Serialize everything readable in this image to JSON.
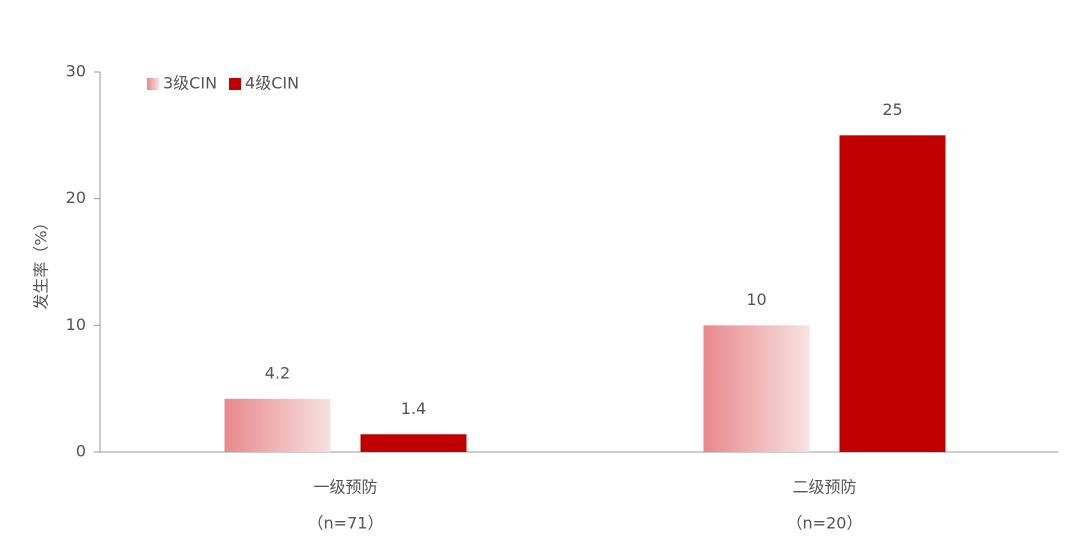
{
  "chart_data": {
    "type": "bar",
    "y_label": "发生率（%）",
    "categories": [
      [
        "一级预防",
        "（n=71）"
      ],
      [
        "二级预防",
        "（n=20）"
      ]
    ],
    "series": [
      {
        "name": "3级CIN",
        "color": "#e8898c",
        "gradient": [
          "#e8898c",
          "#f8e2e2"
        ],
        "values": [
          4.2,
          10
        ]
      },
      {
        "name": "4级CIN",
        "color": "#c00000",
        "values": [
          1.4,
          25
        ]
      }
    ],
    "ylim": [
      0,
      30
    ],
    "yticks": [
      0,
      10,
      20,
      30
    ],
    "legend": "top-left"
  }
}
